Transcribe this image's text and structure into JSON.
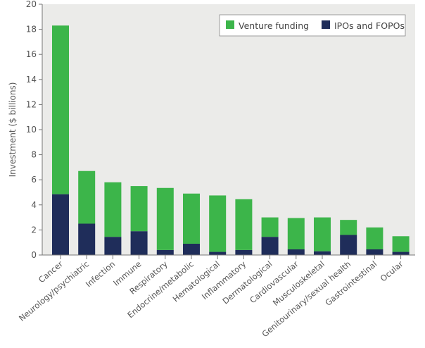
{
  "chart_data": {
    "type": "bar",
    "stacked": true,
    "title": "",
    "xlabel": "",
    "ylabel": "Investment ($ billions)",
    "ylim": [
      0,
      20
    ],
    "yticks": [
      "0",
      "2",
      "4",
      "6",
      "8",
      "10",
      "12",
      "14",
      "16",
      "18",
      "20"
    ],
    "legend_position": "top-right",
    "categories": [
      "Cancer",
      "Neurology/psychiatric",
      "Infection",
      "Immune",
      "Respiratory",
      "Endocrine/metabolic",
      "Hematological",
      "Inflammatory",
      "Dermatological",
      "Cardiovascular",
      "Musculoskeletal",
      "Genitourinary/sexual health",
      "Gastrointestinal",
      "Ocular"
    ],
    "series": [
      {
        "name": "IPOs and FOPOs",
        "color": "#1f2d5a",
        "values": [
          4.85,
          2.5,
          1.45,
          1.9,
          0.4,
          0.9,
          0.25,
          0.4,
          1.45,
          0.45,
          0.3,
          1.6,
          0.45,
          0.25
        ]
      },
      {
        "name": "Venture funding",
        "color": "#3cb54a",
        "values": [
          13.45,
          4.2,
          4.35,
          3.6,
          4.95,
          4.0,
          4.5,
          4.05,
          1.55,
          2.5,
          2.7,
          1.2,
          1.75,
          1.25
        ]
      }
    ],
    "legend": [
      "Venture funding",
      "IPOs and FOPOs"
    ],
    "background_color": "#ebebe9"
  }
}
